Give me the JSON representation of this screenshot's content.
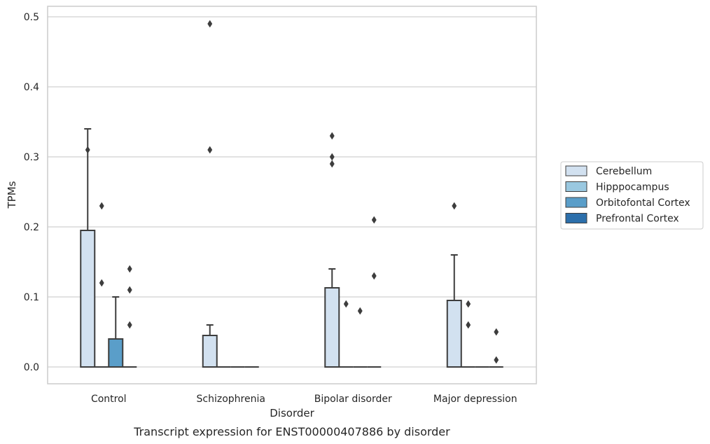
{
  "chart_data": {
    "type": "box",
    "caption": "Transcript expression for ENST00000407886 by disorder",
    "xlabel": "Disorder",
    "ylabel": "TPMs",
    "ylim": [
      -0.024,
      0.515
    ],
    "yticks": [
      0.0,
      0.1,
      0.2,
      0.3,
      0.4,
      0.5
    ],
    "ytick_labels": [
      "0.0",
      "0.1",
      "0.2",
      "0.3",
      "0.4",
      "0.5"
    ],
    "grid": "horizontal",
    "legend_position": "right",
    "categories": [
      "Control",
      "Schizophrenia",
      "Bipolar disorder",
      "Major depression"
    ],
    "series": [
      {
        "name": "Cerebellum",
        "color": "#d2e1f0",
        "boxes": [
          {
            "q1": 0.0,
            "median": 0.0,
            "q3": 0.195,
            "whisker_low": 0.0,
            "whisker_high": 0.34,
            "outliers": [
              0.31
            ]
          },
          {
            "q1": 0.0,
            "median": 0.0,
            "q3": 0.045,
            "whisker_low": 0.0,
            "whisker_high": 0.06,
            "outliers": [
              0.31,
              0.49
            ]
          },
          {
            "q1": 0.0,
            "median": 0.0,
            "q3": 0.113,
            "whisker_low": 0.0,
            "whisker_high": 0.14,
            "outliers": [
              0.29,
              0.3,
              0.33
            ]
          },
          {
            "q1": 0.0,
            "median": 0.0,
            "q3": 0.095,
            "whisker_low": 0.0,
            "whisker_high": 0.16,
            "outliers": [
              0.23
            ]
          }
        ]
      },
      {
        "name": "Hipppocampus",
        "color": "#9ac8e0",
        "boxes": [
          {
            "q1": 0.0,
            "median": 0.0,
            "q3": 0.0,
            "whisker_low": 0.0,
            "whisker_high": 0.0,
            "outliers": [
              0.23,
              0.12
            ]
          },
          {
            "q1": 0.0,
            "median": 0.0,
            "q3": 0.0,
            "whisker_low": 0.0,
            "whisker_high": 0.0,
            "outliers": []
          },
          {
            "q1": 0.0,
            "median": 0.0,
            "q3": 0.0,
            "whisker_low": 0.0,
            "whisker_high": 0.0,
            "outliers": [
              0.09
            ]
          },
          {
            "q1": 0.0,
            "median": 0.0,
            "q3": 0.0,
            "whisker_low": 0.0,
            "whisker_high": 0.0,
            "outliers": [
              0.09,
              0.06
            ]
          }
        ]
      },
      {
        "name": "Orbitofontal Cortex",
        "color": "#5a9ec9",
        "boxes": [
          {
            "q1": 0.0,
            "median": 0.0,
            "q3": 0.04,
            "whisker_low": 0.0,
            "whisker_high": 0.1,
            "outliers": []
          },
          {
            "q1": 0.0,
            "median": 0.0,
            "q3": 0.0,
            "whisker_low": 0.0,
            "whisker_high": 0.0,
            "outliers": []
          },
          {
            "q1": 0.0,
            "median": 0.0,
            "q3": 0.0,
            "whisker_low": 0.0,
            "whisker_high": 0.0,
            "outliers": [
              0.08
            ]
          },
          {
            "q1": 0.0,
            "median": 0.0,
            "q3": 0.0,
            "whisker_low": 0.0,
            "whisker_high": 0.0,
            "outliers": []
          }
        ]
      },
      {
        "name": "Prefrontal Cortex",
        "color": "#2c6fab",
        "boxes": [
          {
            "q1": 0.0,
            "median": 0.0,
            "q3": 0.0,
            "whisker_low": 0.0,
            "whisker_high": 0.0,
            "outliers": [
              0.14,
              0.11,
              0.06
            ]
          },
          {
            "q1": 0.0,
            "median": 0.0,
            "q3": 0.0,
            "whisker_low": 0.0,
            "whisker_high": 0.0,
            "outliers": []
          },
          {
            "q1": 0.0,
            "median": 0.0,
            "q3": 0.0,
            "whisker_low": 0.0,
            "whisker_high": 0.0,
            "outliers": [
              0.21,
              0.13
            ]
          },
          {
            "q1": 0.0,
            "median": 0.0,
            "q3": 0.0,
            "whisker_low": 0.0,
            "whisker_high": 0.0,
            "outliers": [
              0.05,
              0.01
            ]
          }
        ]
      }
    ],
    "colors": {
      "edge": "#3d3d3d",
      "grid": "#d0d0d0",
      "frame": "#cccccc"
    }
  }
}
